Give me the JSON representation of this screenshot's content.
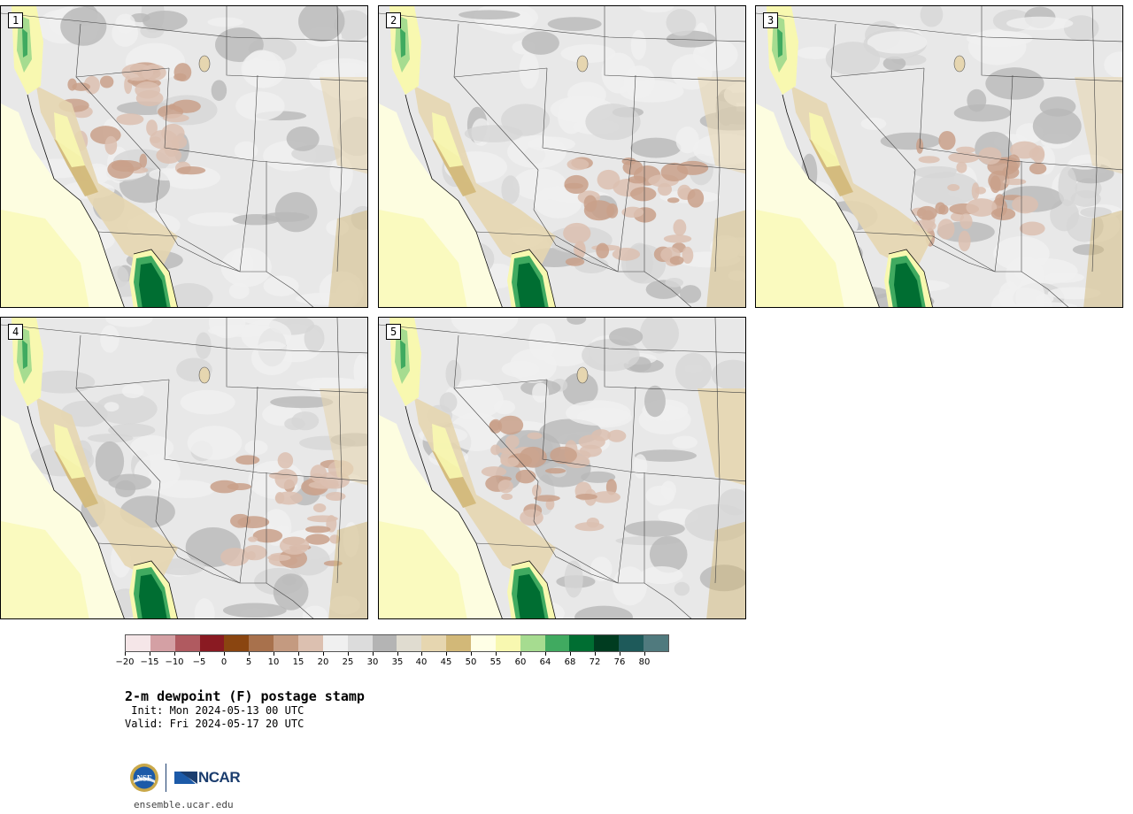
{
  "panels": [
    {
      "label": "1",
      "variant": 0
    },
    {
      "label": "2",
      "variant": 1
    },
    {
      "label": "3",
      "variant": 2
    },
    {
      "label": "4",
      "variant": 3
    },
    {
      "label": "5",
      "variant": 4
    }
  ],
  "colorbar": {
    "ticks": [
      "−20",
      "−15",
      "−10",
      "−5",
      "0",
      "5",
      "10",
      "15",
      "20",
      "25",
      "30",
      "35",
      "40",
      "45",
      "50",
      "55",
      "60",
      "64",
      "68",
      "72",
      "76",
      "80"
    ],
    "colors": [
      "#f5e6e8",
      "#d4a0a4",
      "#b05a60",
      "#8a1a22",
      "#8a4510",
      "#a8714c",
      "#c49a80",
      "#dcc0b0",
      "#f0f0f0",
      "#dcdcdc",
      "#b4b4b4",
      "#e0dcd0",
      "#e6d6b0",
      "#d2b878",
      "#ffffe6",
      "#f8f8b0",
      "#a6dc90",
      "#40aa60",
      "#006e32",
      "#003c20",
      "#1e5a5a",
      "#507a7e"
    ]
  },
  "title": "2-m dewpoint (F) postage stamp",
  "init": " Init: Mon 2024-05-13 00 UTC",
  "valid": "Valid: Fri 2024-05-17 20 UTC",
  "logos": {
    "nsf": "NSF",
    "ncar": "NCAR"
  },
  "footer": "ensemble.ucar.edu",
  "colors": {
    "ocean": "#fdfde0",
    "base": "#e8e8e8"
  }
}
